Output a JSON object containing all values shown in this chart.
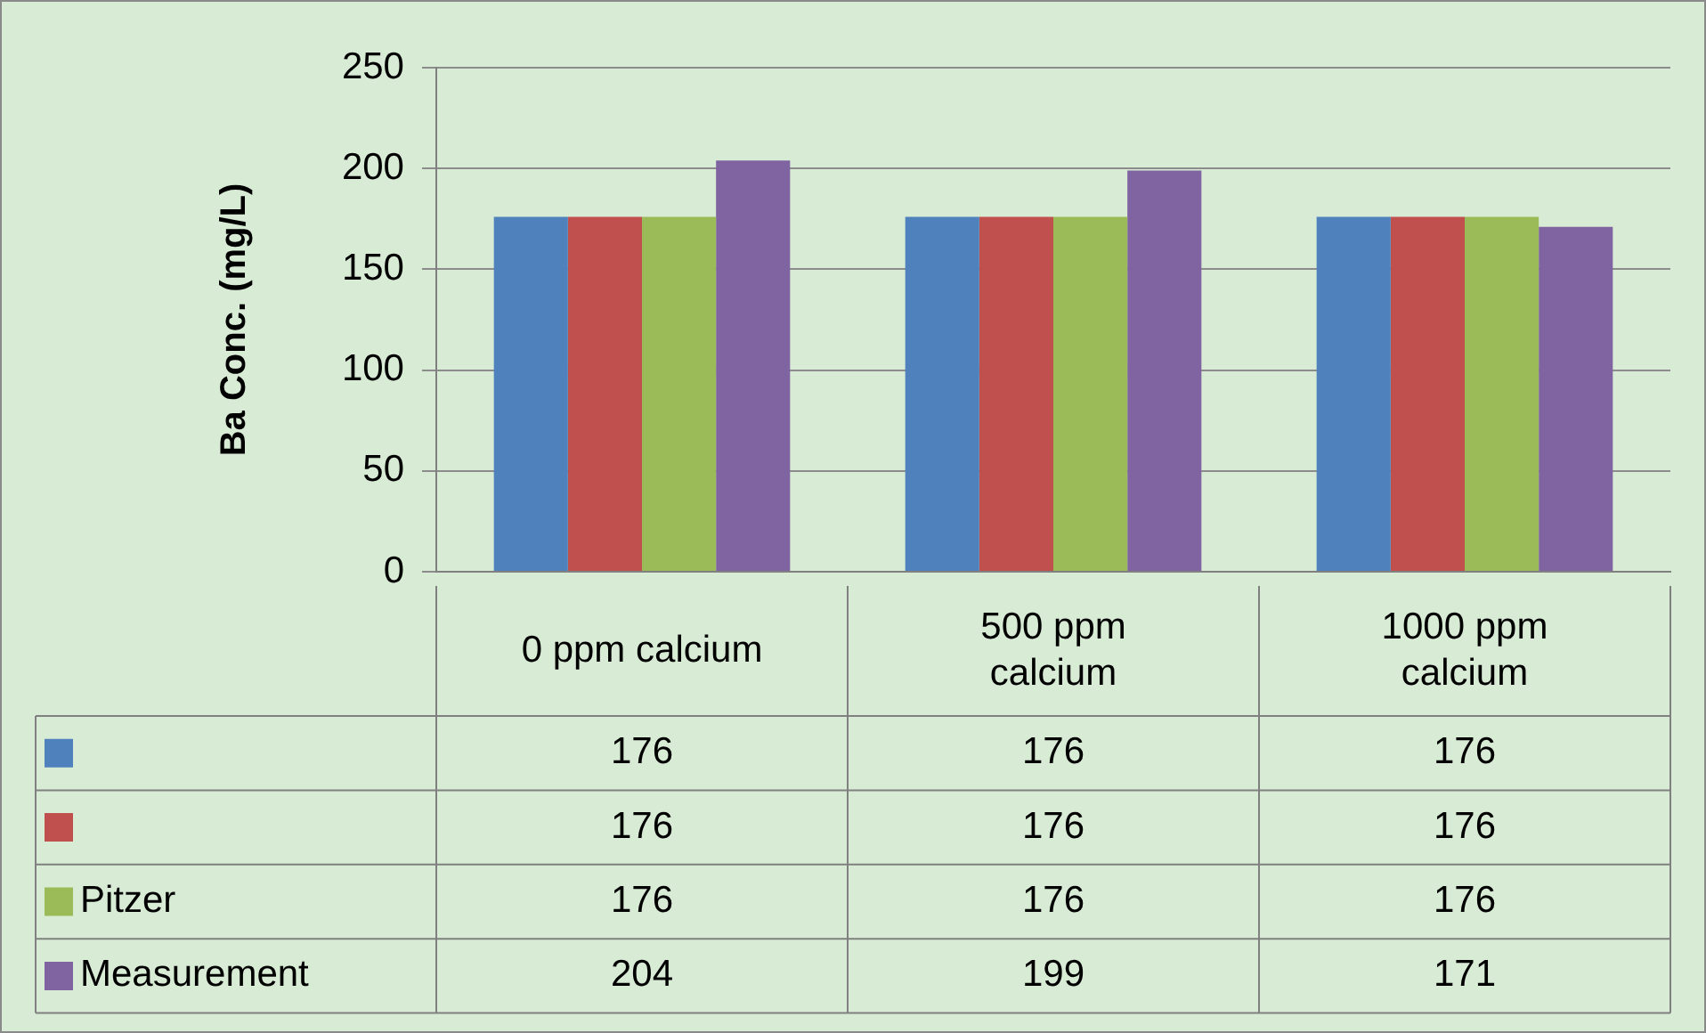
{
  "chart_data": {
    "type": "bar",
    "ylabel": "Ba Conc. (mg/L)",
    "categories": [
      "0 ppm calcium",
      "500 ppm calcium",
      "1000 ppm calcium"
    ],
    "series": [
      {
        "color": "#4f81bd",
        "values": [
          176,
          176,
          176
        ]
      },
      {
        "color": "#c0504d",
        "values": [
          176,
          176,
          176
        ]
      },
      {
        "name": "Pitzer",
        "color": "#9bbb59",
        "values": [
          176,
          176,
          176
        ]
      },
      {
        "name": "Measurement",
        "color": "#8064a2",
        "values": [
          204,
          199,
          171
        ]
      }
    ],
    "ylim": [
      0,
      250
    ],
    "yticks": [
      0,
      50,
      100,
      150,
      200,
      250
    ],
    "grid": "y",
    "legend": "bottom",
    "data_labels": true
  }
}
